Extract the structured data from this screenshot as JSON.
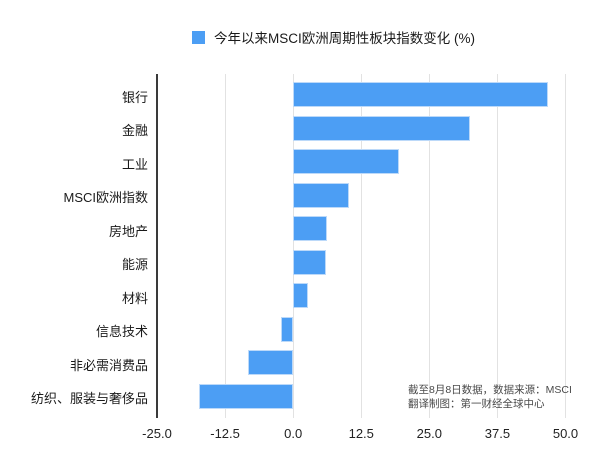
{
  "legend": {
    "label": "今年以来MSCI欧洲周期性板块指数变化 (%)"
  },
  "source_note": {
    "line1": "截至8月8日数据，数据来源：MSCI",
    "line2": "翻译制图：第一财经全球中心"
  },
  "colors": {
    "bar": "#4C9EF4",
    "gridline": "#e2e2e2",
    "axis_line": "#3a3a3a"
  },
  "chart_data": {
    "type": "bar",
    "orientation": "horizontal",
    "title": "今年以来MSCI欧洲周期性板块指数变化 (%)",
    "categories": [
      "银行",
      "金融",
      "工业",
      "MSCI欧洲指数",
      "房地产",
      "能源",
      "材料",
      "信息技术",
      "非必需消费品",
      "纺织、服装与奢侈品"
    ],
    "values": [
      46.8,
      32.4,
      19.4,
      10.2,
      6.3,
      6.1,
      2.8,
      -2.3,
      -8.3,
      -17.2
    ],
    "xlabel": "",
    "ylabel": "",
    "xlim": [
      -25,
      50
    ],
    "xticks": [
      -25,
      -12.5,
      0,
      12.5,
      25,
      37.5,
      50
    ],
    "xtick_labels": [
      "-25.0",
      "-12.5",
      "0.0",
      "12.5",
      "25.0",
      "37.5",
      "50.0"
    ],
    "grid": true,
    "legend_position": "top"
  }
}
